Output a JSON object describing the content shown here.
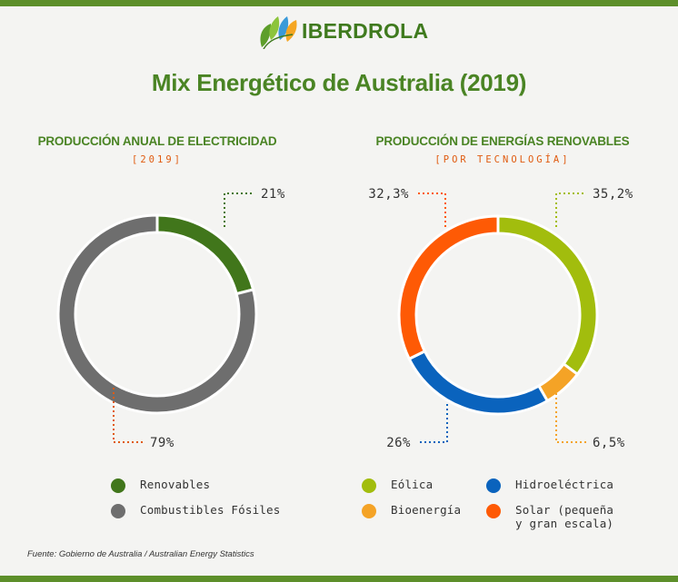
{
  "brand": {
    "name": "IBERDROLA"
  },
  "title": "Mix Energético de Australia (2019)",
  "source": "Fuente: Gobierno de Australia / Australian Energy Statistics",
  "colors": {
    "renovables": "#41761b",
    "combustibles": "#6e6e6e",
    "eolica": "#a2bd0d",
    "hidro": "#0a63bd",
    "bio": "#f4a326",
    "solar": "#fe5a05",
    "title_green": "#4a8424",
    "subtitle_orange": "#e05b10"
  },
  "chart_data": [
    {
      "type": "pie",
      "title": "PRODUCCIÓN ANUAL DE ELECTRICIDAD",
      "subtitle": "[2019]",
      "slices": [
        {
          "label": "Renovables",
          "value": 21,
          "value_label": "21%",
          "color": "#41761b"
        },
        {
          "label": "Combustibles Fósiles",
          "value": 79,
          "value_label": "79%",
          "color": "#6e6e6e"
        }
      ]
    },
    {
      "type": "pie",
      "title": "PRODUCCIÓN DE ENERGÍAS RENOVABLES",
      "subtitle": "[POR TECNOLOGÍA]",
      "slices": [
        {
          "label": "Eólica",
          "value": 35.2,
          "value_label": "35,2%",
          "color": "#a2bd0d"
        },
        {
          "label": "Bioenergía",
          "value": 6.5,
          "value_label": "6,5%",
          "color": "#f4a326"
        },
        {
          "label": "Hidroeléctrica",
          "value": 26,
          "value_label": "26%",
          "color": "#0a63bd"
        },
        {
          "label": "Solar (pequeña y gran escala)",
          "value": 32.3,
          "value_label": "32,3%",
          "color": "#fe5a05"
        }
      ]
    }
  ],
  "legends": {
    "left": [
      {
        "label": "Renovables",
        "color": "#41761b"
      },
      {
        "label": "Combustibles Fósiles",
        "color": "#6e6e6e"
      }
    ],
    "right": [
      {
        "label": "Eólica",
        "color": "#a2bd0d"
      },
      {
        "label": "Hidroeléctrica",
        "color": "#0a63bd"
      },
      {
        "label": "Bioenergía",
        "color": "#f4a326"
      },
      {
        "label": "Solar (pequeña y gran escala)",
        "label_line1": "Solar (pequeña",
        "label_line2": "y gran escala)",
        "color": "#fe5a05"
      }
    ]
  }
}
